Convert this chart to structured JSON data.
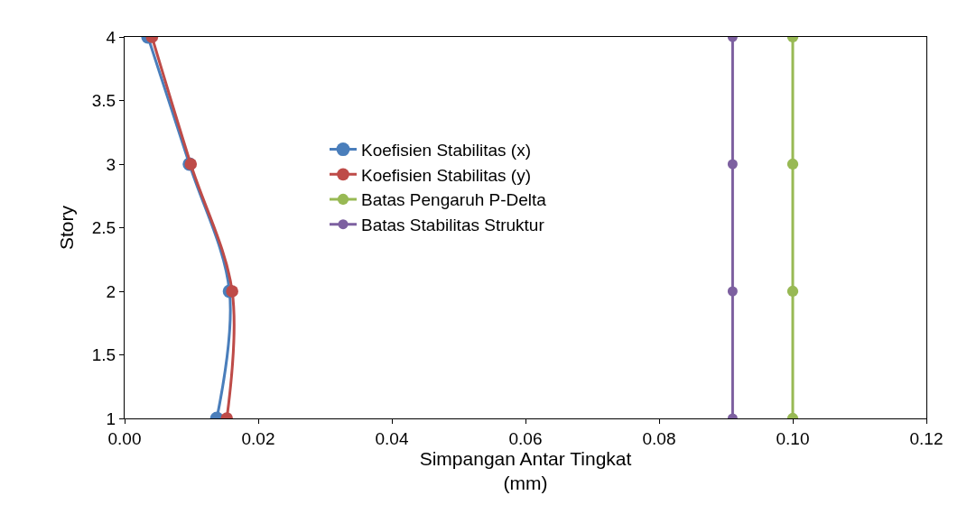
{
  "chart_data": {
    "type": "line",
    "xlabel": "Simpangan Antar Tingkat\n(mm)",
    "ylabel": "Story",
    "xlim": [
      0,
      0.12
    ],
    "xticks": [
      {
        "value": 0,
        "label": "0.00"
      },
      {
        "value": 0.02,
        "label": "0.02"
      },
      {
        "value": 0.04,
        "label": "0.04"
      },
      {
        "value": 0.06,
        "label": "0.06"
      },
      {
        "value": 0.08,
        "label": "0.08"
      },
      {
        "value": 0.1,
        "label": "0.10"
      },
      {
        "value": 0.12,
        "label": "0.12"
      }
    ],
    "ylim": [
      1,
      4
    ],
    "yticks": [
      1,
      1.5,
      2,
      2.5,
      3,
      3.5,
      4
    ],
    "grid": false,
    "legend": "center",
    "marker": "circle",
    "line_style": "solid",
    "series": [
      {
        "name": "Koefisien Stabilitas (x)",
        "color": "#4a7ebb",
        "x": [
          0.0035,
          0.0097,
          0.0157,
          0.0138
        ],
        "values": [
          4,
          3,
          2,
          1
        ]
      },
      {
        "name": "Koefisien Stabilitas (y)",
        "color": "#be4b48",
        "x": [
          0.0041,
          0.0099,
          0.0161,
          0.0153
        ],
        "values": [
          4,
          3,
          2,
          1
        ]
      },
      {
        "name": "Batas Pengaruh P-Delta",
        "color": "#98b954",
        "x": [
          0.1,
          0.1,
          0.1,
          0.1
        ],
        "values": [
          4,
          3,
          2,
          1
        ]
      },
      {
        "name": "Batas Stabilitas Struktur",
        "color": "#7d60a0",
        "x": [
          0.091,
          0.091,
          0.091,
          0.091
        ],
        "values": [
          4,
          3,
          2,
          1
        ]
      }
    ]
  }
}
